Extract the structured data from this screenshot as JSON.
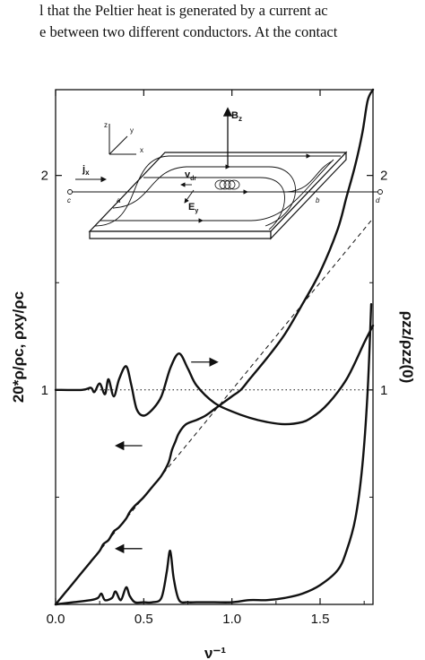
{
  "header": {
    "line1": "l that the Peltier heat is generated by a current ac",
    "line2": "e between two different conductors. At the contact"
  },
  "chart_data": {
    "type": "line",
    "xlabel": "ν⁻¹",
    "ylabel_left": "20*ρ/ρc,  ρxy/ρc",
    "ylabel_right": "ρzz/ρzz(0)",
    "xlim": [
      0.0,
      1.8
    ],
    "ylim": [
      0.0,
      2.4
    ],
    "x_ticks": [
      "0.0",
      "0.5",
      "1.0",
      "1.5"
    ],
    "x_tick_values": [
      0.0,
      0.5,
      1.0,
      1.5
    ],
    "y_ticks_left": [
      "1",
      "2"
    ],
    "y_ticks_right": [
      "1",
      "2"
    ],
    "y_tick_values": [
      1,
      2
    ],
    "grid": false,
    "reference_lines": [
      {
        "name": "classical Hall line (dashed)",
        "style": "dashed",
        "x": [
          0.0,
          1.8
        ],
        "y": [
          0.0,
          1.8
        ]
      },
      {
        "name": "unity level (dotted)",
        "style": "dotted",
        "x": [
          0.0,
          1.8
        ],
        "y": [
          1.0,
          1.0
        ]
      }
    ],
    "series": [
      {
        "name": "",
        "axis": "left",
        "x": [
          0.0,
          0.05,
          0.1,
          0.15,
          0.2,
          0.25,
          0.27,
          0.3,
          0.33,
          0.36,
          0.4,
          0.42,
          0.45,
          0.5,
          0.55,
          0.6,
          0.64,
          0.66,
          0.68,
          0.7,
          0.74,
          0.8,
          0.85,
          0.9,
          0.95,
          1.0,
          1.05,
          1.1,
          1.2,
          1.3,
          1.4,
          1.5,
          1.6,
          1.65,
          1.7,
          1.74,
          1.77,
          1.8
        ],
        "y": [
          0.0,
          0.05,
          0.1,
          0.15,
          0.2,
          0.25,
          0.28,
          0.3,
          0.34,
          0.36,
          0.4,
          0.43,
          0.46,
          0.5,
          0.55,
          0.6,
          0.66,
          0.72,
          0.76,
          0.8,
          0.84,
          0.86,
          0.88,
          0.91,
          0.94,
          0.97,
          1.0,
          1.05,
          1.15,
          1.26,
          1.4,
          1.55,
          1.75,
          1.9,
          2.05,
          2.2,
          2.35,
          2.42
        ]
      },
      {
        "name": "",
        "axis": "left",
        "x": [
          0.0,
          0.1,
          0.2,
          0.24,
          0.26,
          0.28,
          0.32,
          0.34,
          0.37,
          0.4,
          0.42,
          0.45,
          0.5,
          0.55,
          0.6,
          0.63,
          0.65,
          0.67,
          0.7,
          0.75,
          0.8,
          0.9,
          1.0,
          1.1,
          1.2,
          1.3,
          1.4,
          1.5,
          1.6,
          1.65,
          1.7,
          1.74,
          1.77,
          1.79
        ],
        "y": [
          0.0,
          0.01,
          0.02,
          0.03,
          0.05,
          0.02,
          0.03,
          0.06,
          0.02,
          0.08,
          0.04,
          0.01,
          0.01,
          0.01,
          0.03,
          0.15,
          0.25,
          0.12,
          0.02,
          0.01,
          0.01,
          0.01,
          0.01,
          0.02,
          0.02,
          0.03,
          0.05,
          0.09,
          0.16,
          0.25,
          0.4,
          0.65,
          1.0,
          1.4
        ]
      },
      {
        "name": "",
        "axis": "right",
        "x": [
          0.0,
          0.15,
          0.2,
          0.22,
          0.25,
          0.28,
          0.3,
          0.33,
          0.36,
          0.4,
          0.43,
          0.46,
          0.5,
          0.55,
          0.6,
          0.65,
          0.7,
          0.75,
          0.8,
          0.9,
          1.0,
          1.1,
          1.2,
          1.3,
          1.4,
          1.45,
          1.5,
          1.55,
          1.6,
          1.65,
          1.7,
          1.75,
          1.8
        ],
        "y": [
          1.0,
          1.0,
          1.01,
          0.99,
          1.03,
          0.98,
          1.05,
          0.97,
          1.05,
          1.11,
          1.02,
          0.91,
          0.88,
          0.91,
          0.97,
          1.1,
          1.17,
          1.1,
          1.02,
          0.94,
          0.9,
          0.87,
          0.85,
          0.84,
          0.85,
          0.87,
          0.9,
          0.94,
          0.99,
          1.05,
          1.13,
          1.22,
          1.3
        ]
      }
    ],
    "annotations": [
      {
        "type": "arrow",
        "direction": "right",
        "x": 0.84,
        "y": 1.13
      },
      {
        "type": "arrow",
        "direction": "left",
        "x": 0.42,
        "y": 0.74
      },
      {
        "type": "arrow",
        "direction": "left",
        "x": 0.42,
        "y": 0.26
      }
    ],
    "inset": {
      "labels": {
        "bz": "B",
        "bz_sub": "z",
        "jx": "j",
        "jx_sub": "x",
        "vdr": "v",
        "vdr_sub": "dr",
        "ey": "E",
        "ey_sub": "y",
        "a": "a",
        "b": "b",
        "c": "c",
        "d": "d",
        "axis_z": "z",
        "axis_y": "y",
        "axis_x": "x"
      }
    }
  }
}
